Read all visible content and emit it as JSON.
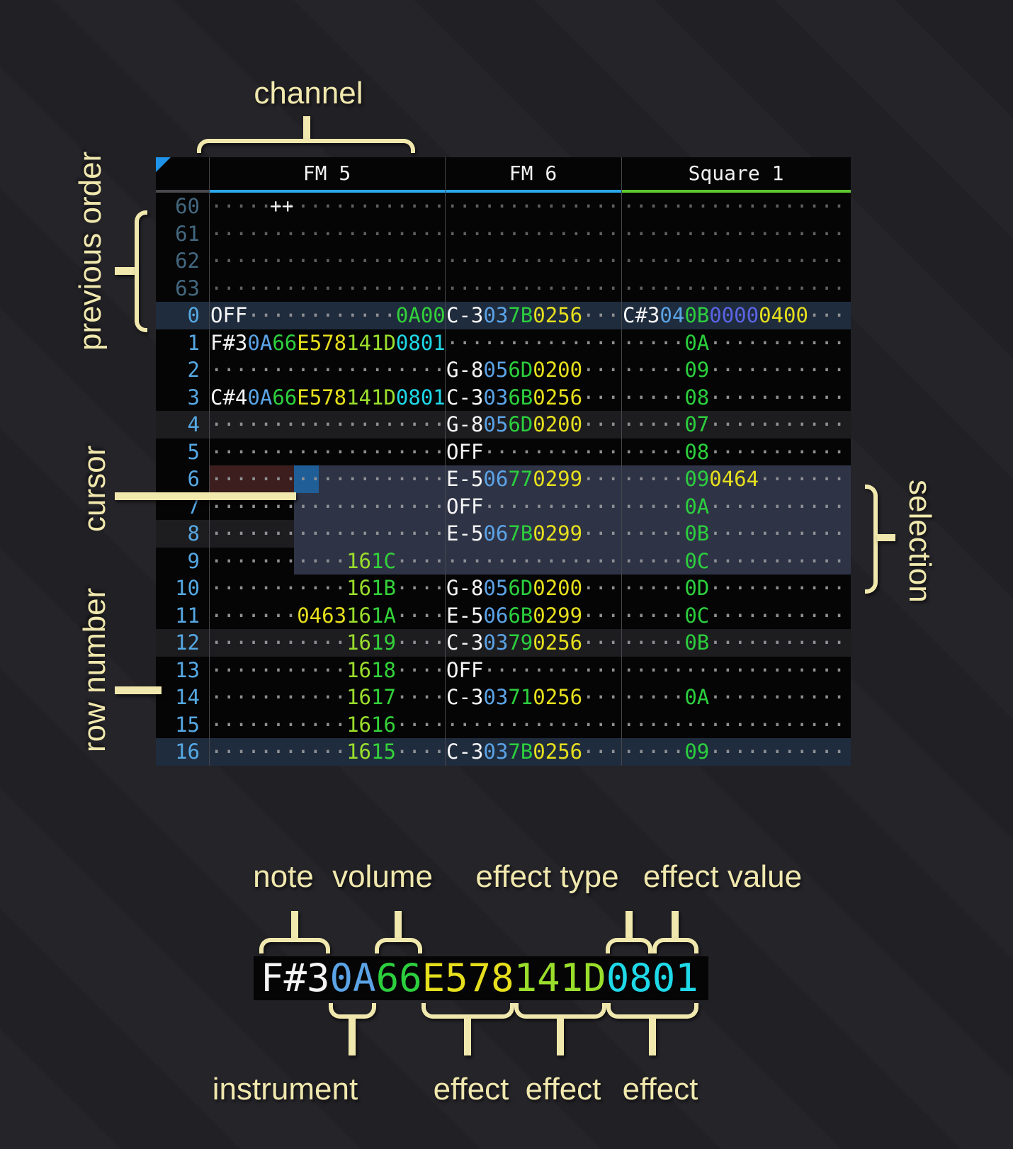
{
  "annotations": {
    "channel": "channel",
    "previous_order": "previous order",
    "cursor": "cursor",
    "row_number": "row number",
    "selection": "selection",
    "note": "note",
    "volume": "volume",
    "effect_type": "effect type",
    "effect_value": "effect value",
    "instrument": "instrument",
    "effects": [
      "effect",
      "effect",
      "effect"
    ]
  },
  "header": {
    "order_cell": "++",
    "channels": [
      {
        "label": "FM 5",
        "underline": "#2ba7ea"
      },
      {
        "label": "FM 6",
        "underline": "#2ba7ea"
      },
      {
        "label": "Square 1",
        "underline": "#5ec730"
      }
    ]
  },
  "colors": {
    "note": "#f4f4f4",
    "instrument": "#5ba3e6",
    "volume": "#2ccf3e",
    "effect_yellow": "#e6df1d",
    "effect_lime": "#9ade2c",
    "effect_green": "#33d23a",
    "effect_cyan": "#1fd9e8",
    "effect_indigo": "#5b64e4",
    "row_number": "#56a8e3",
    "row_number_previous": "#43677f",
    "cursor": "#1f5e97",
    "cursor_row": "#3c1e1e",
    "selection": "#2f3346",
    "annotation": "#f1e8ae",
    "order_triangle": "#1f93ea"
  },
  "rows": [
    {
      "num": "60",
      "cls": "prev",
      "fm5": [
        {
          "d": 19
        }
      ],
      "fm6": [
        {
          "d": 14
        }
      ],
      "sq1": [
        {
          "d": 18
        }
      ]
    },
    {
      "num": "61",
      "cls": "prev",
      "fm5": [
        {
          "d": 19
        }
      ],
      "fm6": [
        {
          "d": 14
        }
      ],
      "sq1": [
        {
          "d": 18
        }
      ]
    },
    {
      "num": "62",
      "cls": "prev",
      "fm5": [
        {
          "d": 19
        }
      ],
      "fm6": [
        {
          "d": 14
        }
      ],
      "sq1": [
        {
          "d": 18
        }
      ]
    },
    {
      "num": "63",
      "cls": "prev",
      "fm5": [
        {
          "d": 19
        }
      ],
      "fm6": [
        {
          "d": 14
        }
      ],
      "sq1": [
        {
          "d": 18
        }
      ]
    },
    {
      "num": "0",
      "cls": "hl16",
      "fm5": [
        {
          "t": "OFF",
          "c": "note"
        },
        {
          "d": 12
        },
        {
          "t": "0A00",
          "c": "fxG"
        }
      ],
      "fm6": [
        {
          "t": "C-3",
          "c": "note"
        },
        {
          "t": "03",
          "c": "ins"
        },
        {
          "t": "7B",
          "c": "vol"
        },
        {
          "t": "0256",
          "c": "fxY"
        },
        {
          "d": 3
        }
      ],
      "sq1": [
        {
          "t": "C#3",
          "c": "note"
        },
        {
          "t": "04",
          "c": "ins"
        },
        {
          "t": "0B",
          "c": "vol"
        },
        {
          "t": "0000",
          "c": "fxI"
        },
        {
          "t": "0400",
          "c": "fxY"
        },
        {
          "d": 3
        }
      ]
    },
    {
      "num": "1",
      "cls": "",
      "fm5": [
        {
          "t": "F#3",
          "c": "note"
        },
        {
          "t": "0A",
          "c": "ins"
        },
        {
          "t": "66",
          "c": "vol"
        },
        {
          "t": "E578",
          "c": "fxY"
        },
        {
          "t": "141D",
          "c": "fxL"
        },
        {
          "t": "0801",
          "c": "fxC"
        }
      ],
      "fm6": [
        {
          "d": 14
        }
      ],
      "sq1": [
        {
          "d": 5
        },
        {
          "t": "0A",
          "c": "vol"
        },
        {
          "d": 11
        }
      ]
    },
    {
      "num": "2",
      "cls": "",
      "fm5": [
        {
          "d": 19
        }
      ],
      "fm6": [
        {
          "t": "G-8",
          "c": "note"
        },
        {
          "t": "05",
          "c": "ins"
        },
        {
          "t": "6D",
          "c": "vol"
        },
        {
          "t": "0200",
          "c": "fxY"
        },
        {
          "d": 3
        }
      ],
      "sq1": [
        {
          "d": 5
        },
        {
          "t": "09",
          "c": "vol"
        },
        {
          "d": 11
        }
      ]
    },
    {
      "num": "3",
      "cls": "",
      "fm5": [
        {
          "t": "C#4",
          "c": "note"
        },
        {
          "t": "0A",
          "c": "ins"
        },
        {
          "t": "66",
          "c": "vol"
        },
        {
          "t": "E578",
          "c": "fxY"
        },
        {
          "t": "141D",
          "c": "fxL"
        },
        {
          "t": "0801",
          "c": "fxC"
        }
      ],
      "fm6": [
        {
          "t": "C-3",
          "c": "note"
        },
        {
          "t": "03",
          "c": "ins"
        },
        {
          "t": "6B",
          "c": "vol"
        },
        {
          "t": "0256",
          "c": "fxY"
        },
        {
          "d": 3
        }
      ],
      "sq1": [
        {
          "d": 5
        },
        {
          "t": "08",
          "c": "vol"
        },
        {
          "d": 11
        }
      ]
    },
    {
      "num": "4",
      "cls": "hl4",
      "fm5": [
        {
          "d": 19
        }
      ],
      "fm6": [
        {
          "t": "G-8",
          "c": "note"
        },
        {
          "t": "05",
          "c": "ins"
        },
        {
          "t": "6D",
          "c": "vol"
        },
        {
          "t": "0200",
          "c": "fxY"
        },
        {
          "d": 3
        }
      ],
      "sq1": [
        {
          "d": 5
        },
        {
          "t": "07",
          "c": "vol"
        },
        {
          "d": 11
        }
      ]
    },
    {
      "num": "5",
      "cls": "",
      "fm5": [
        {
          "d": 19
        }
      ],
      "fm6": [
        {
          "t": "OFF",
          "c": "note"
        },
        {
          "d": 11
        }
      ],
      "sq1": [
        {
          "d": 5
        },
        {
          "t": "08",
          "c": "vol"
        },
        {
          "d": 11
        }
      ]
    },
    {
      "num": "6",
      "cls": "",
      "fm5": [
        {
          "d": 19
        }
      ],
      "fm6": [
        {
          "t": "E-5",
          "c": "note"
        },
        {
          "t": "06",
          "c": "ins"
        },
        {
          "t": "77",
          "c": "vol"
        },
        {
          "t": "0299",
          "c": "fxY"
        },
        {
          "d": 3
        }
      ],
      "sq1": [
        {
          "d": 5
        },
        {
          "t": "09",
          "c": "vol"
        },
        {
          "t": "0464",
          "c": "fxY"
        },
        {
          "d": 7
        }
      ]
    },
    {
      "num": "7",
      "cls": "",
      "fm5": [
        {
          "d": 19
        }
      ],
      "fm6": [
        {
          "t": "OFF",
          "c": "note"
        },
        {
          "d": 11
        }
      ],
      "sq1": [
        {
          "d": 5
        },
        {
          "t": "0A",
          "c": "vol"
        },
        {
          "d": 11
        }
      ]
    },
    {
      "num": "8",
      "cls": "hl4",
      "fm5": [
        {
          "d": 19
        }
      ],
      "fm6": [
        {
          "t": "E-5",
          "c": "note"
        },
        {
          "t": "06",
          "c": "ins"
        },
        {
          "t": "7B",
          "c": "vol"
        },
        {
          "t": "0299",
          "c": "fxY"
        },
        {
          "d": 3
        }
      ],
      "sq1": [
        {
          "d": 5
        },
        {
          "t": "0B",
          "c": "vol"
        },
        {
          "d": 11
        }
      ]
    },
    {
      "num": "9",
      "cls": "",
      "fm5": [
        {
          "d": 11
        },
        {
          "t": "16",
          "c": "fxL"
        },
        {
          "t": "1C",
          "c": "fxG"
        },
        {
          "d": 4
        }
      ],
      "fm6": [
        {
          "d": 14
        }
      ],
      "sq1": [
        {
          "d": 5
        },
        {
          "t": "0C",
          "c": "vol"
        },
        {
          "d": 11
        }
      ]
    },
    {
      "num": "10",
      "cls": "",
      "fm5": [
        {
          "d": 11
        },
        {
          "t": "16",
          "c": "fxL"
        },
        {
          "t": "1B",
          "c": "fxG"
        },
        {
          "d": 4
        }
      ],
      "fm6": [
        {
          "t": "G-8",
          "c": "note"
        },
        {
          "t": "05",
          "c": "ins"
        },
        {
          "t": "6D",
          "c": "vol"
        },
        {
          "t": "0200",
          "c": "fxY"
        },
        {
          "d": 3
        }
      ],
      "sq1": [
        {
          "d": 5
        },
        {
          "t": "0D",
          "c": "vol"
        },
        {
          "d": 11
        }
      ]
    },
    {
      "num": "11",
      "cls": "",
      "fm5": [
        {
          "d": 7
        },
        {
          "t": "0463",
          "c": "fxY"
        },
        {
          "t": "16",
          "c": "fxL"
        },
        {
          "t": "1A",
          "c": "fxG"
        },
        {
          "d": 4
        }
      ],
      "fm6": [
        {
          "t": "E-5",
          "c": "note"
        },
        {
          "t": "06",
          "c": "ins"
        },
        {
          "t": "6B",
          "c": "vol"
        },
        {
          "t": "0299",
          "c": "fxY"
        },
        {
          "d": 3
        }
      ],
      "sq1": [
        {
          "d": 5
        },
        {
          "t": "0C",
          "c": "vol"
        },
        {
          "d": 11
        }
      ]
    },
    {
      "num": "12",
      "cls": "hl4",
      "fm5": [
        {
          "d": 11
        },
        {
          "t": "16",
          "c": "fxL"
        },
        {
          "t": "19",
          "c": "fxG"
        },
        {
          "d": 4
        }
      ],
      "fm6": [
        {
          "t": "C-3",
          "c": "note"
        },
        {
          "t": "03",
          "c": "ins"
        },
        {
          "t": "79",
          "c": "vol"
        },
        {
          "t": "0256",
          "c": "fxY"
        },
        {
          "d": 3
        }
      ],
      "sq1": [
        {
          "d": 5
        },
        {
          "t": "0B",
          "c": "vol"
        },
        {
          "d": 11
        }
      ]
    },
    {
      "num": "13",
      "cls": "",
      "fm5": [
        {
          "d": 11
        },
        {
          "t": "16",
          "c": "fxL"
        },
        {
          "t": "18",
          "c": "fxG"
        },
        {
          "d": 4
        }
      ],
      "fm6": [
        {
          "t": "OFF",
          "c": "note"
        },
        {
          "d": 11
        }
      ],
      "sq1": [
        {
          "d": 18
        }
      ]
    },
    {
      "num": "14",
      "cls": "",
      "fm5": [
        {
          "d": 11
        },
        {
          "t": "16",
          "c": "fxL"
        },
        {
          "t": "17",
          "c": "fxG"
        },
        {
          "d": 4
        }
      ],
      "fm6": [
        {
          "t": "C-3",
          "c": "note"
        },
        {
          "t": "03",
          "c": "ins"
        },
        {
          "t": "71",
          "c": "vol"
        },
        {
          "t": "0256",
          "c": "fxY"
        },
        {
          "d": 3
        }
      ],
      "sq1": [
        {
          "d": 5
        },
        {
          "t": "0A",
          "c": "vol"
        },
        {
          "d": 11
        }
      ]
    },
    {
      "num": "15",
      "cls": "",
      "fm5": [
        {
          "d": 11
        },
        {
          "t": "16",
          "c": "fxL"
        },
        {
          "t": "16",
          "c": "fxG"
        },
        {
          "d": 4
        }
      ],
      "fm6": [
        {
          "d": 14
        }
      ],
      "sq1": [
        {
          "d": 18
        }
      ]
    },
    {
      "num": "16",
      "cls": "hl16",
      "fm5": [
        {
          "d": 11
        },
        {
          "t": "16",
          "c": "fxL"
        },
        {
          "t": "15",
          "c": "fxG"
        },
        {
          "d": 4
        }
      ],
      "fm6": [
        {
          "t": "C-3",
          "c": "note"
        },
        {
          "t": "03",
          "c": "ins"
        },
        {
          "t": "7B",
          "c": "vol"
        },
        {
          "t": "0256",
          "c": "fxY"
        },
        {
          "d": 3
        }
      ],
      "sq1": [
        {
          "d": 5
        },
        {
          "t": "09",
          "c": "vol"
        },
        {
          "d": 11
        }
      ]
    }
  ],
  "legend": {
    "segments": [
      {
        "t": "F#3",
        "c": "note"
      },
      {
        "t": "0A",
        "c": "ins"
      },
      {
        "t": "66",
        "c": "vol"
      },
      {
        "t": "E578",
        "c": "fxY"
      },
      {
        "t": "141D",
        "c": "fxL"
      },
      {
        "t": "0801",
        "c": "fxC"
      }
    ]
  }
}
